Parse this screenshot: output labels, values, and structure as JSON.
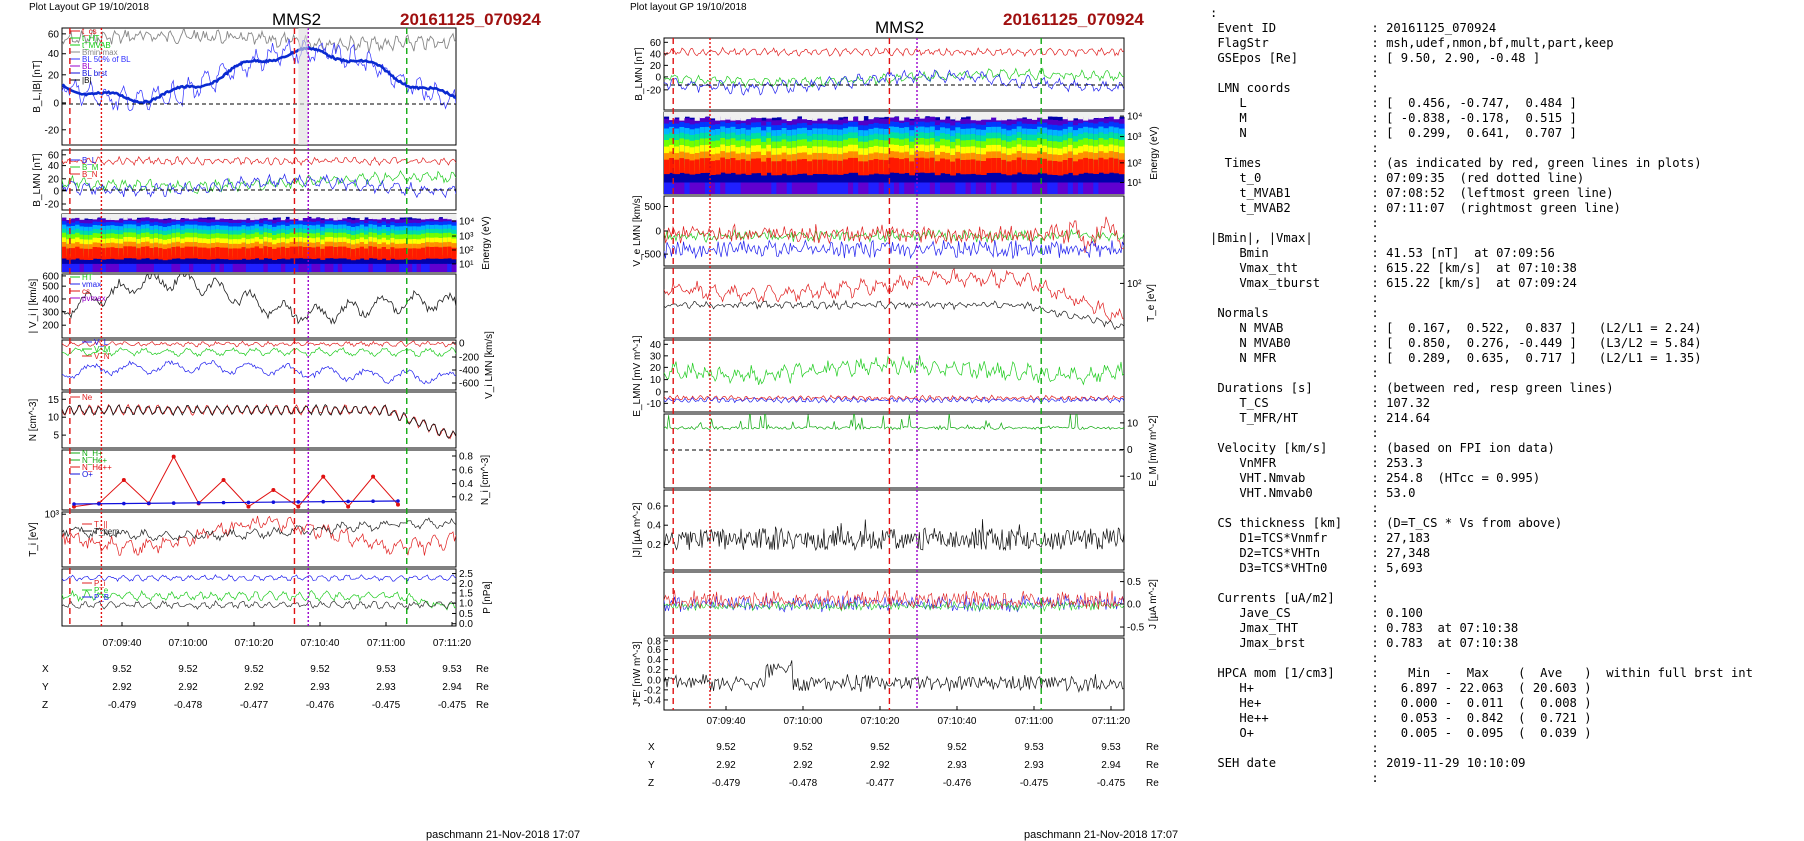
{
  "left_panel": {
    "header_left": "Plot Layout GP 19/10/2018",
    "header_title": "MMS2",
    "header_event": "20161125_070924",
    "footer": "paschmann 21-Nov-2018 17:07",
    "ylabels": [
      "B_L,|B| [nT]",
      "B_LMN [nT]",
      "Energy (eV)",
      "| V_i | [km/s]",
      "V_i LMN [km/s]",
      "N [cm^-3]",
      "N_i [cm^-3]",
      "T_i [eV]",
      "P [nPa]"
    ],
    "legend_labels": {
      "p1": [
        "t_cs",
        "t_HT",
        "t_MVAB",
        "Bmin/max",
        "BL 50% of BL",
        "BL",
        "BL brst",
        "|B|"
      ],
      "p2": [
        "B_L",
        "B_M",
        "B_N"
      ],
      "p4": [
        "HT",
        "vmax",
        "cs",
        "pvmax"
      ],
      "p5": [
        "V_L",
        "V_M",
        "V_N"
      ],
      "p6": [
        "Ne"
      ],
      "p7": [
        "N_H+",
        "N_He+",
        "N_He++",
        "O+"
      ],
      "p8": [
        "T_||",
        "T_perp"
      ],
      "p9": [
        "P_i",
        "P_e",
        "P_B"
      ]
    },
    "time_ticks": [
      "07:09:40",
      "07:10:00",
      "07:10:20",
      "07:10:40",
      "07:11:00",
      "07:11:20"
    ],
    "pos_rows": [
      {
        "label": "X",
        "values": [
          "9.52",
          "9.52",
          "9.52",
          "9.52",
          "9.53",
          "9.53"
        ],
        "unit": "Re"
      },
      {
        "label": "Y",
        "values": [
          "2.92",
          "2.92",
          "2.92",
          "2.93",
          "2.93",
          "2.94"
        ],
        "unit": "Re"
      },
      {
        "label": "Z",
        "values": [
          "-0.479",
          "-0.478",
          "-0.477",
          "-0.476",
          "-0.475",
          "-0.475"
        ],
        "unit": "Re"
      }
    ]
  },
  "right_panel": {
    "header_left": "Plot layout GP 19/10/2018",
    "header_title": "MMS2",
    "header_event": "20161125_070924",
    "footer": "paschmann 21-Nov-2018 17:07",
    "ylabels": [
      "B_LMN [nT]",
      "Energy (eV)",
      "V_e LMN [km/s]",
      "T_e [eV]",
      "E_LMN [mV m^-1]",
      "E_M [mW m^-2]",
      "|J| [µA m^-2]",
      "J [µA m^-2]",
      "J*E' [nW m^-3]"
    ],
    "time_ticks": [
      "07:09:40",
      "07:10:00",
      "07:10:20",
      "07:10:40",
      "07:11:00",
      "07:11:20"
    ],
    "pos_rows": [
      {
        "label": "X",
        "values": [
          "9.52",
          "9.52",
          "9.52",
          "9.52",
          "9.53",
          "9.53"
        ],
        "unit": "Re"
      },
      {
        "label": "Y",
        "values": [
          "2.92",
          "2.92",
          "2.92",
          "2.93",
          "2.93",
          "2.94"
        ],
        "unit": "Re"
      },
      {
        "label": "Z",
        "values": [
          "-0.479",
          "-0.478",
          "-0.477",
          "-0.476",
          "-0.475",
          "-0.475"
        ],
        "unit": "Re"
      }
    ]
  },
  "info_lines": [
    ":",
    " Event ID             : 20161125_070924",
    " FlagStr              : msh,udef,nmon,bf,mult,part,keep",
    " GSEpos [Re]          : [ 9.50, 2.90, -0.48 ]",
    "                      :",
    " LMN coords           :",
    "    L                 : [  0.456, -0.747,  0.484 ]",
    "    M                 : [ -0.838, -0.178,  0.515 ]",
    "    N                 : [  0.299,  0.641,  0.707 ]",
    "                      :",
    "  Times               : (as indicated by red, green lines in plots)",
    "    t_0               : 07:09:35  (red dotted line)",
    "    t_MVAB1           : 07:08:52  (leftmost green line)",
    "    t_MVAB2           : 07:11:07  (rightmost green line)",
    "                      :",
    "|Bmin|, |Vmax|        :",
    "    Bmin              : 41.53 [nT]  at 07:09:56",
    "    Vmax_tht          : 615.22 [km/s]  at 07:10:38",
    "    Vmax_tburst       : 615.22 [km/s]  at 07:09:24",
    "                      :",
    " Normals              :",
    "    N MVAB            : [  0.167,  0.522,  0.837 ]   (L2/L1 = 2.24)",
    "    N MVAB0           : [  0.850,  0.276, -0.449 ]   (L3/L2 = 5.84)",
    "    N MFR             : [  0.289,  0.635,  0.717 ]   (L2/L1 = 1.35)",
    "                      :",
    " Durations [s]        : (between red, resp green lines)",
    "    T_CS              : 107.32",
    "    T_MFR/HT          : 214.64",
    "                      :",
    " Velocity [km/s]      : (based on FPI ion data)",
    "    VnMFR             : 253.3",
    "    VHT.Nmvab         : 254.8  (HTcc = 0.995)",
    "    VHT.Nmvab0        : 53.0",
    "                      :",
    " CS thickness [km]    : (D=T_CS * Vs from above)",
    "    D1=TCS*Vnmfr      : 27,183",
    "    D2=TCS*VHTn       : 27,348",
    "    D3=TCS*VHTn0      : 5,693",
    "                      :",
    " Currents [uA/m2]     :",
    "    Jave_CS           : 0.100",
    "    Jmax_THT          : 0.783  at 07:10:38",
    "    Jmax_brst         : 0.783  at 07:10:38",
    "                      :",
    " HPCA mom [1/cm3]     :    Min  -  Max    (  Ave   )  within full brst int",
    "    H+                :   6.897 - 22.063  ( 20.603 )",
    "    He+               :   0.000 -  0.011  (  0.008 )",
    "    He++              :   0.053 -  0.842  (  0.721 )",
    "    O+                :   0.005 -  0.095  (  0.039 )",
    "                      :",
    " SEH date             : 2019-11-29 10:10:09",
    "                      :"
  ],
  "chart_data": [
    {
      "type": "line",
      "panel": "left",
      "ylabel": "B_L,|B| [nT]",
      "ylim": [
        -30,
        65
      ],
      "yticks": [
        -20,
        0,
        20,
        40,
        60
      ]
    },
    {
      "type": "line",
      "panel": "left",
      "ylabel": "B_LMN [nT]",
      "ylim": [
        -30,
        60
      ],
      "yticks": [
        -20,
        0,
        20,
        40,
        60
      ]
    },
    {
      "type": "heatmap",
      "panel": "left",
      "ylabel": "Energy (eV)",
      "yticks": [
        "10^4",
        "10^3",
        "10^2",
        "10^1"
      ]
    },
    {
      "type": "line",
      "panel": "left",
      "ylabel": "| V_i | [km/s]",
      "ylim": [
        180,
        620
      ],
      "yticks": [
        200,
        300,
        400,
        500,
        600
      ]
    },
    {
      "type": "line",
      "panel": "left",
      "ylabel": "V_i LMN [km/s]",
      "ylim": [
        -700,
        100
      ],
      "yticks": [
        0,
        -200,
        -400,
        -600
      ]
    },
    {
      "type": "line",
      "panel": "left",
      "ylabel": "N [cm^-3]",
      "ylim": [
        2,
        17
      ],
      "yticks": [
        5,
        10,
        15
      ]
    },
    {
      "type": "line",
      "panel": "left",
      "ylabel": "N_i [cm^-3]",
      "ylim": [
        0,
        0.9
      ],
      "yticks": [
        0.2,
        0.4,
        0.6,
        0.8
      ],
      "series": [
        {
          "name": "N He++",
          "x": [
            "07:09:30",
            "07:09:37",
            "07:09:45",
            "07:09:52",
            "07:10:00",
            "07:10:08",
            "07:10:15",
            "07:10:22",
            "07:10:30",
            "07:10:38",
            "07:10:45",
            "07:10:52",
            "07:11:00",
            "07:11:08"
          ],
          "values": [
            0.05,
            0.1,
            0.45,
            0.1,
            0.8,
            0.1,
            0.45,
            0.05,
            0.3,
            0.05,
            0.5,
            0.05,
            0.5,
            0.08
          ]
        }
      ]
    },
    {
      "type": "line",
      "panel": "left",
      "ylabel": "T_i [eV]",
      "yticks": [
        "10^3"
      ]
    },
    {
      "type": "line",
      "panel": "left",
      "ylabel": "P [nPa]",
      "ylim": [
        0,
        2.7
      ],
      "yticks": [
        0.0,
        0.5,
        1.0,
        1.5,
        2.0,
        2.5
      ]
    },
    {
      "type": "line",
      "panel": "right",
      "ylabel": "B_LMN [nT]",
      "ylim": [
        -30,
        65
      ],
      "yticks": [
        -20,
        0,
        20,
        40,
        60
      ]
    },
    {
      "type": "heatmap",
      "panel": "right",
      "ylabel": "Energy (eV)",
      "yticks": [
        "10^4",
        "10^3",
        "10^2",
        "10^1"
      ]
    },
    {
      "type": "line",
      "panel": "right",
      "ylabel": "V_e LMN [km/s]",
      "ylim": [
        -700,
        700
      ],
      "yticks": [
        -500,
        0,
        500
      ]
    },
    {
      "type": "line",
      "panel": "right",
      "ylabel": "T_e [eV]",
      "yticks": [
        "10^2"
      ]
    },
    {
      "type": "line",
      "panel": "right",
      "ylabel": "E_LMN [mV m^-1]",
      "ylim": [
        -15,
        45
      ],
      "yticks": [
        -10,
        0,
        10,
        20,
        30,
        40
      ]
    },
    {
      "type": "line",
      "panel": "right",
      "ylabel": "E_M [mW m^-2]",
      "ylim": [
        -15,
        15
      ],
      "yticks": [
        -10,
        0,
        10
      ]
    },
    {
      "type": "line",
      "panel": "right",
      "ylabel": "|J| [µA m^-2]",
      "ylim": [
        0,
        0.7
      ],
      "yticks": [
        0.2,
        0.4,
        0.6
      ]
    },
    {
      "type": "line",
      "panel": "right",
      "ylabel": "J [µA m^-2]",
      "ylim": [
        -0.7,
        0.7
      ],
      "yticks": [
        -0.5,
        0.0,
        0.5
      ]
    },
    {
      "type": "line",
      "panel": "right",
      "ylabel": "J*E' [nW m^-3]",
      "ylim": [
        -0.5,
        0.9
      ],
      "yticks": [
        -0.4,
        -0.2,
        0.0,
        0.2,
        0.4,
        0.6,
        0.8
      ]
    }
  ],
  "colors": {
    "event": "#a01010",
    "bl": "#1010dd",
    "red": "#e01010",
    "green": "#10cc10",
    "purple": "#9900cc"
  }
}
